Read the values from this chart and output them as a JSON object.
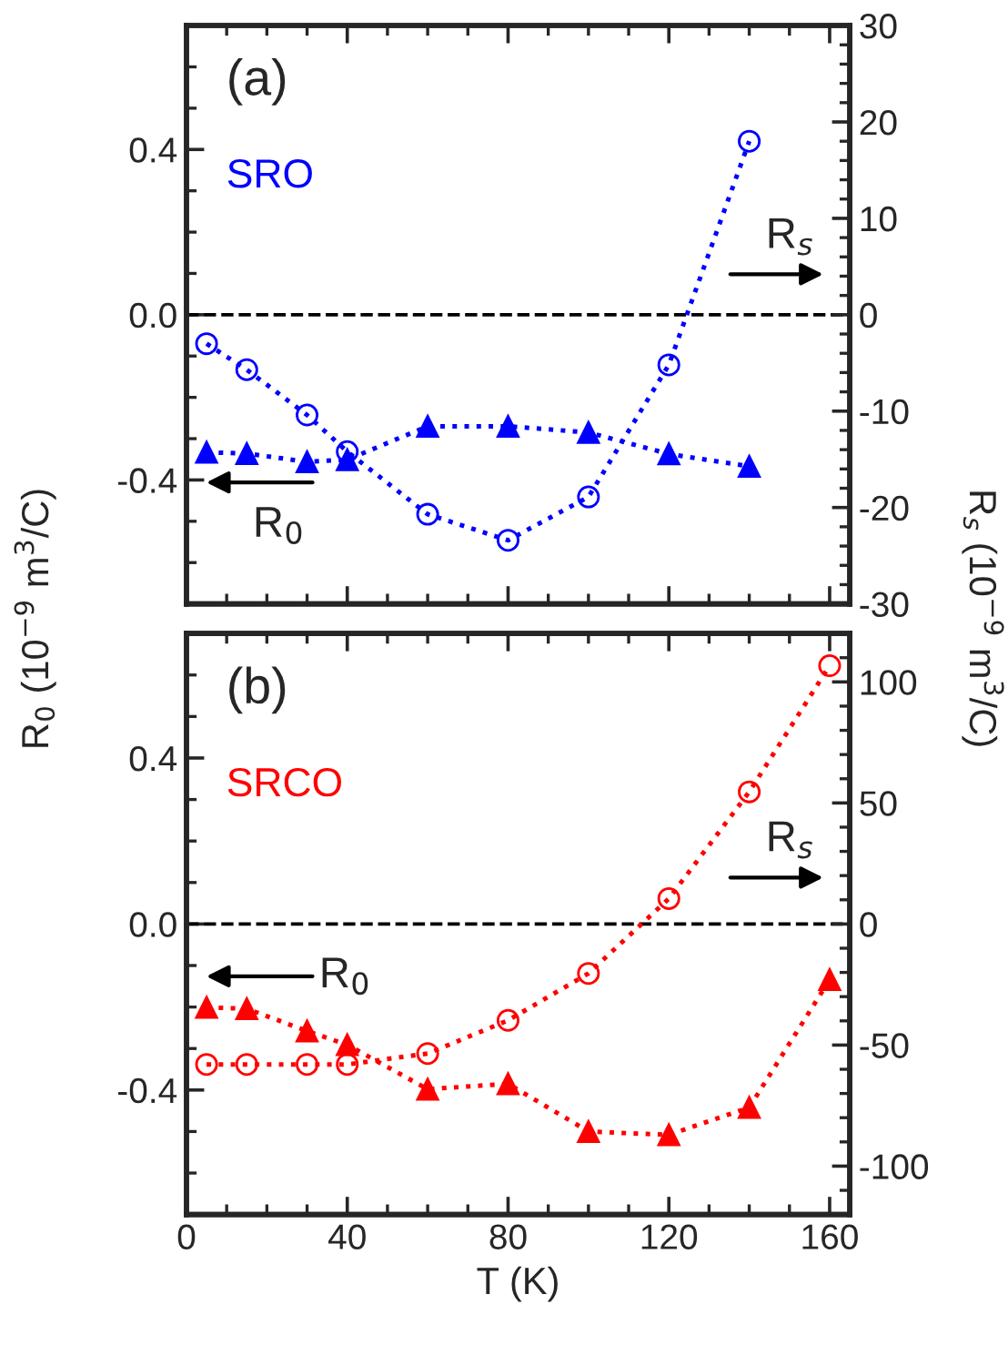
{
  "chart_data": [
    {
      "type": "line",
      "x": [
        5,
        15,
        30,
        40,
        60,
        80,
        100,
        120,
        140
      ],
      "series": [
        {
          "color": "#0000ff",
          "marker": "triangle",
          "line_style": "dotted",
          "values": [
            -0.333,
            -0.336,
            -0.356,
            -0.351,
            -0.27,
            -0.27,
            -0.285,
            -0.337,
            -0.367
          ]
        },
        {
          "color": "#0000ff",
          "marker": "circle",
          "line_style": "dotted",
          "axis": "y2",
          "values": [
            -3.0,
            -5.7,
            -10.4,
            -14.2,
            -20.7,
            -23.4,
            -18.9,
            -5.2,
            18.0
          ]
        }
      ],
      "xlim": [
        0,
        165
      ],
      "xticks": [
        0,
        40,
        80,
        120,
        160
      ],
      "ylim": [
        -0.7,
        0.7
      ],
      "yticks": [
        {
          "value": -0.4,
          "label": "-0.4"
        },
        {
          "value": 0,
          "label": "0.0"
        },
        {
          "value": 0.4,
          "label": "0.4"
        }
      ],
      "y2lim": [
        -30,
        30
      ],
      "y2ticks": [
        -30,
        -20,
        -10,
        0,
        10,
        20,
        30
      ],
      "ylabel": "R$_{0}$ (10$^{−9}$ m$^{3}$/C)",
      "y2label": "R$_{s}$ (10$^{−9}$ m$^{3}$/C)",
      "tick_labels": "y",
      "ref_lines": [
        {
          "axis": "y",
          "value": 0,
          "color": "#000000",
          "line_style": "dashed"
        }
      ],
      "annotations": [
        "(a)",
        "SRO",
        "R$_{s}$",
        "R$_{0}$"
      ]
    },
    {
      "type": "line",
      "x": [
        5,
        15,
        30,
        40,
        60,
        80,
        100,
        120,
        140,
        160
      ],
      "series": [
        {
          "color": "#ff0000",
          "marker": "triangle",
          "line_style": "dotted",
          "values": [
            -0.201,
            -0.204,
            -0.258,
            -0.291,
            -0.398,
            -0.385,
            -0.5,
            -0.508,
            -0.442,
            -0.134
          ]
        },
        {
          "color": "#ff0000",
          "marker": "circle",
          "line_style": "dotted",
          "axis": "y2",
          "values": [
            -58,
            -58,
            -58,
            -58,
            -53.5,
            -39.8,
            -20.4,
            10.5,
            54.6,
            106.7
          ]
        }
      ],
      "xlim": [
        0,
        165
      ],
      "xticks": [
        0,
        40,
        80,
        120,
        160
      ],
      "ylim": [
        -0.7,
        0.7
      ],
      "yticks": [
        {
          "value": -0.4,
          "label": "-0.4"
        },
        {
          "value": 0,
          "label": "0.0"
        },
        {
          "value": 0.4,
          "label": "0.4"
        }
      ],
      "y2lim": [
        -120,
        120
      ],
      "y2ticks": [
        -100,
        -50,
        0,
        50,
        100
      ],
      "xlabel": "T (K)",
      "ref_lines": [
        {
          "axis": "y",
          "value": 0,
          "color": "#000000",
          "line_style": "dashed"
        }
      ],
      "annotations": [
        "(b)",
        "SRCO",
        "R$_{s}$",
        "R$_{0}$"
      ]
    }
  ]
}
